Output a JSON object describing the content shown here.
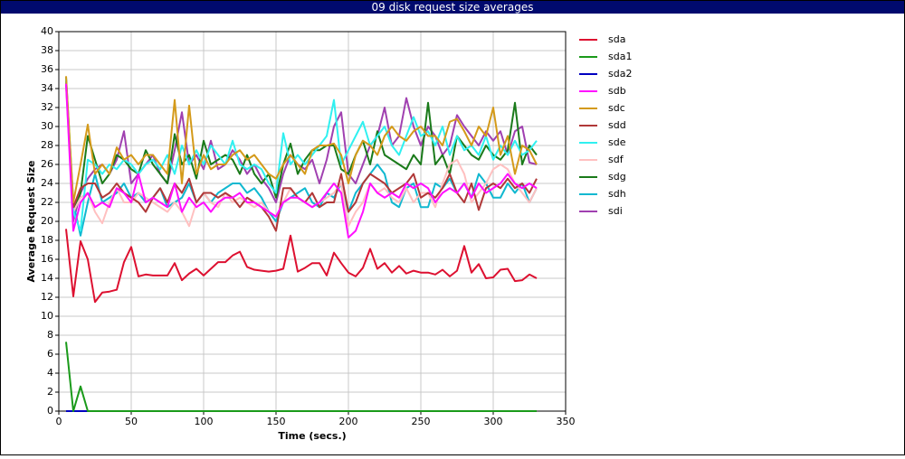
{
  "chart_data": {
    "type": "line",
    "title": "09 disk request size averages",
    "x_label": "Time (secs.)",
    "y_label": "Average Request Size",
    "xlim": [
      0,
      350
    ],
    "xticks": [
      0,
      50,
      100,
      150,
      200,
      250,
      300,
      350
    ],
    "ylim": [
      0,
      40
    ],
    "yticks": [
      0,
      2,
      4,
      6,
      8,
      10,
      12,
      14,
      16,
      18,
      20,
      22,
      24,
      26,
      28,
      30,
      32,
      34,
      36,
      38,
      40
    ],
    "grid": true,
    "legend": "right",
    "x": [
      5,
      10,
      15,
      20,
      25,
      30,
      35,
      40,
      45,
      50,
      55,
      60,
      65,
      70,
      75,
      80,
      85,
      90,
      95,
      100,
      105,
      110,
      115,
      120,
      125,
      130,
      135,
      140,
      145,
      150,
      155,
      160,
      165,
      170,
      175,
      180,
      185,
      190,
      195,
      200,
      205,
      210,
      215,
      220,
      225,
      230,
      235,
      240,
      245,
      250,
      255,
      260,
      265,
      270,
      275,
      280,
      285,
      290,
      295,
      300,
      305,
      310,
      315,
      320,
      325,
      330
    ],
    "series": [
      {
        "name": "sda",
        "color": "#dd1030",
        "values": [
          19.2,
          12.1,
          17.9,
          16,
          11.5,
          12.5,
          12.6,
          12.8,
          15.7,
          17.3,
          14.2,
          14.4,
          14.3,
          14.3,
          14.3,
          15.6,
          13.8,
          14.5,
          15,
          14.3,
          15,
          15.7,
          15.7,
          16.4,
          16.8,
          15.2,
          14.9,
          14.8,
          14.7,
          14.8,
          15,
          18.5,
          14.7,
          15.1,
          15.6,
          15.6,
          14.3,
          16.7,
          15.6,
          14.6,
          14.2,
          15.1,
          17.1,
          15,
          15.6,
          14.6,
          15.3,
          14.5,
          14.8,
          14.6,
          14.6,
          14.4,
          14.9,
          14.2,
          14.8,
          17.4,
          14.6,
          15.5,
          14,
          14.1,
          14.9,
          15,
          13.7,
          13.8,
          14.4,
          14.0
        ]
      },
      {
        "name": "sda1",
        "color": "#1a9a1a",
        "values": [
          7.3,
          0,
          2.6,
          0,
          0,
          0,
          0,
          0,
          0,
          0,
          0,
          0,
          0,
          0,
          0,
          0,
          0,
          0,
          0,
          0,
          0,
          0,
          0,
          0,
          0,
          0,
          0,
          0,
          0,
          0,
          0,
          0,
          0,
          0,
          0,
          0,
          0,
          0,
          0,
          0,
          0,
          0,
          0,
          0,
          0,
          0,
          0,
          0,
          0,
          0,
          0,
          0,
          0,
          0,
          0,
          0,
          0,
          0,
          0,
          0,
          0,
          0,
          0,
          0,
          0,
          0
        ]
      },
      {
        "name": "sda2",
        "color": "#0000c0",
        "values": [
          0,
          0,
          0,
          0,
          0,
          0,
          0,
          0,
          0,
          0,
          0,
          0,
          0,
          0,
          0,
          0,
          0,
          0,
          0,
          0,
          0,
          0,
          0,
          0,
          0,
          0,
          0,
          0,
          0,
          0,
          0,
          0,
          0,
          0,
          0,
          0,
          0,
          0,
          0,
          0,
          0,
          0,
          0,
          0,
          0,
          0,
          0,
          0,
          0,
          0,
          0,
          0,
          0,
          0,
          0,
          0,
          0,
          0,
          0,
          0,
          0,
          0,
          0,
          0,
          0,
          0
        ]
      },
      {
        "name": "sdb",
        "color": "#ff10ff",
        "values": [
          34.5,
          19,
          22,
          23,
          21.5,
          22,
          21.5,
          23.5,
          23,
          22,
          25,
          22,
          22.5,
          22,
          21.5,
          24,
          21,
          22.5,
          21.5,
          22,
          21,
          22,
          22.5,
          22.5,
          23,
          22,
          22,
          21.5,
          21,
          20.5,
          22,
          22.5,
          22.5,
          22,
          21.5,
          22,
          23,
          24,
          23,
          18.3,
          19,
          21,
          24,
          23,
          22.5,
          23,
          22.5,
          24,
          23.5,
          24,
          23.5,
          22,
          23,
          23.5,
          23,
          24,
          22.5,
          24,
          23,
          23.5,
          24,
          25,
          24,
          23.5,
          24,
          23.5
        ]
      },
      {
        "name": "sdc",
        "color": "#d49a1a",
        "values": [
          35.3,
          22,
          26,
          30.2,
          25,
          26,
          25,
          27.8,
          26.5,
          27,
          26,
          27,
          27,
          26,
          25,
          32.8,
          24,
          32.2,
          25,
          27,
          25.5,
          26,
          26,
          27,
          27.5,
          26.5,
          27,
          26,
          25,
          24.5,
          26,
          27,
          26,
          25,
          27.5,
          28,
          28,
          28.2,
          27,
          24,
          27,
          28.5,
          28,
          27,
          29,
          30,
          29,
          28.5,
          29.5,
          30,
          29,
          29,
          28,
          30.5,
          30.8,
          29.5,
          28,
          30,
          29,
          32,
          27,
          29,
          25,
          28,
          27.5,
          26
        ]
      },
      {
        "name": "sdd",
        "color": "#b03838",
        "values": [
          34.5,
          21.5,
          23.5,
          24,
          24,
          22.5,
          23,
          24,
          23,
          22.5,
          22,
          21,
          22.5,
          23.5,
          22,
          24,
          23,
          24.5,
          22,
          23,
          23,
          22.5,
          23,
          22.5,
          21.5,
          22.5,
          22,
          21.5,
          20.5,
          19,
          23.5,
          23.5,
          22.5,
          22,
          23,
          21.5,
          22,
          22,
          25,
          21,
          22,
          24,
          25,
          24.5,
          24,
          23,
          23.5,
          24,
          25,
          22.5,
          23,
          22.5,
          23.5,
          25,
          23,
          22,
          24,
          21.2,
          23.5,
          24,
          23.5,
          24.5,
          23.5,
          24,
          23,
          24.5
        ]
      },
      {
        "name": "sde",
        "color": "#30f0f0",
        "values": [
          35,
          21,
          19,
          26.5,
          26,
          25,
          26,
          25.5,
          26.5,
          26,
          25,
          26,
          26.5,
          25.5,
          27,
          25,
          28,
          26,
          27.5,
          26,
          28,
          27,
          26,
          28.5,
          26,
          25.5,
          26,
          25.5,
          24,
          23,
          29.3,
          26,
          27,
          26,
          27,
          28,
          29,
          32.8,
          26,
          27.5,
          29,
          30.5,
          28,
          29,
          30,
          28,
          27,
          29,
          31,
          29,
          29.5,
          28,
          30,
          27,
          29,
          27.5,
          28,
          27,
          29,
          26.5,
          28,
          27,
          28.5,
          27,
          27.5,
          28.5
        ]
      },
      {
        "name": "sdf",
        "color": "#ffc0c0",
        "values": [
          34,
          21,
          22.5,
          23,
          21,
          19.8,
          22,
          23.5,
          22,
          22,
          23,
          22.5,
          22,
          21.5,
          21,
          22,
          21,
          19.5,
          22,
          23,
          22,
          21.5,
          23,
          22,
          22.5,
          22,
          21.5,
          22,
          21,
          20.5,
          22,
          23.5,
          22.5,
          22,
          21.5,
          22,
          22.5,
          23,
          24,
          19.5,
          21,
          22,
          24,
          23,
          23.5,
          22.5,
          22,
          23.5,
          22,
          23,
          23,
          21.5,
          24,
          26,
          26.5,
          25,
          22,
          23,
          24,
          25.5,
          26,
          25.5,
          24,
          23,
          22,
          23.5
        ]
      },
      {
        "name": "sdg",
        "color": "#1a7a1a",
        "values": [
          35,
          21,
          23,
          29,
          26.5,
          24,
          25,
          27,
          26.5,
          25.5,
          25,
          27.5,
          26,
          25,
          24,
          29.2,
          26,
          27,
          24.5,
          28.5,
          26,
          26.5,
          27,
          26.5,
          25,
          27,
          25,
          24,
          25,
          22.5,
          26,
          28.2,
          25,
          26.5,
          27.5,
          27.5,
          28,
          28,
          25.5,
          25,
          27,
          28.5,
          26,
          29.5,
          27,
          26.5,
          26,
          25.5,
          27,
          26,
          32.5,
          26,
          27,
          25,
          29,
          28,
          27,
          26.5,
          28,
          27,
          26.5,
          27.5,
          32.5,
          26,
          28,
          27
        ]
      },
      {
        "name": "sdh",
        "color": "#10b8d0",
        "values": [
          35.2,
          22,
          18.5,
          22,
          25,
          22,
          22.5,
          23,
          24,
          22.5,
          23,
          22,
          22.5,
          23.5,
          21.5,
          22,
          22.5,
          24,
          22,
          23,
          22,
          23,
          23.5,
          24,
          24,
          23,
          23.5,
          22.5,
          21,
          20,
          22,
          22.5,
          23,
          23.5,
          22,
          21.5,
          23,
          22.5,
          24,
          21,
          23,
          24,
          25,
          26,
          25,
          22,
          21.5,
          23.5,
          24,
          21.5,
          21.5,
          24,
          23.5,
          24.5,
          23,
          24,
          22.5,
          25,
          24,
          22.5,
          22.5,
          24,
          23,
          24,
          22,
          23.5
        ]
      },
      {
        "name": "sdi",
        "color": "#a040b0",
        "values": [
          34.8,
          20,
          23,
          24.5,
          25.5,
          26,
          25,
          26.5,
          29.5,
          24,
          25,
          26,
          27,
          25,
          24,
          27.5,
          31.5,
          26,
          27,
          25.5,
          28.5,
          25.5,
          26,
          27.5,
          26.5,
          25,
          26,
          24.5,
          23.5,
          22,
          25,
          27,
          26,
          25.5,
          26.5,
          24,
          26.5,
          30,
          31.5,
          25,
          24,
          26,
          28,
          29,
          32,
          28,
          29,
          33,
          30,
          28,
          30,
          29,
          27,
          28,
          31.2,
          30,
          29,
          28,
          29.5,
          28.5,
          29.5,
          27,
          29.5,
          30,
          26.2,
          26
        ]
      }
    ]
  }
}
